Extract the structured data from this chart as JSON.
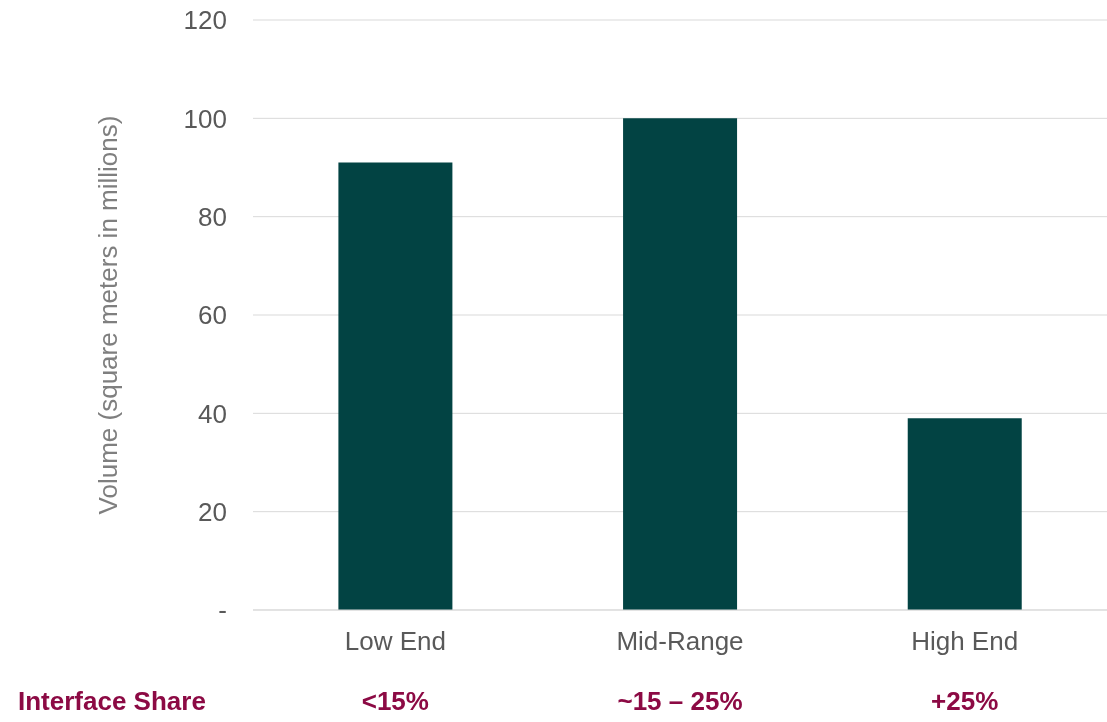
{
  "chart_data": {
    "type": "bar",
    "ylabel": "Volume (square meters in millions)",
    "categories": [
      "Low End",
      "Mid-Range",
      "High End"
    ],
    "values": [
      91,
      100,
      39
    ],
    "color": "#024343",
    "ylim": [
      0,
      120
    ],
    "yticks": [
      {
        "value": 0,
        "label": "-"
      },
      20,
      40,
      60,
      80,
      100,
      120
    ],
    "grid": "y",
    "annotations": [
      "Interface Share",
      "<15%",
      "~15 – 25%",
      "+25%"
    ]
  }
}
